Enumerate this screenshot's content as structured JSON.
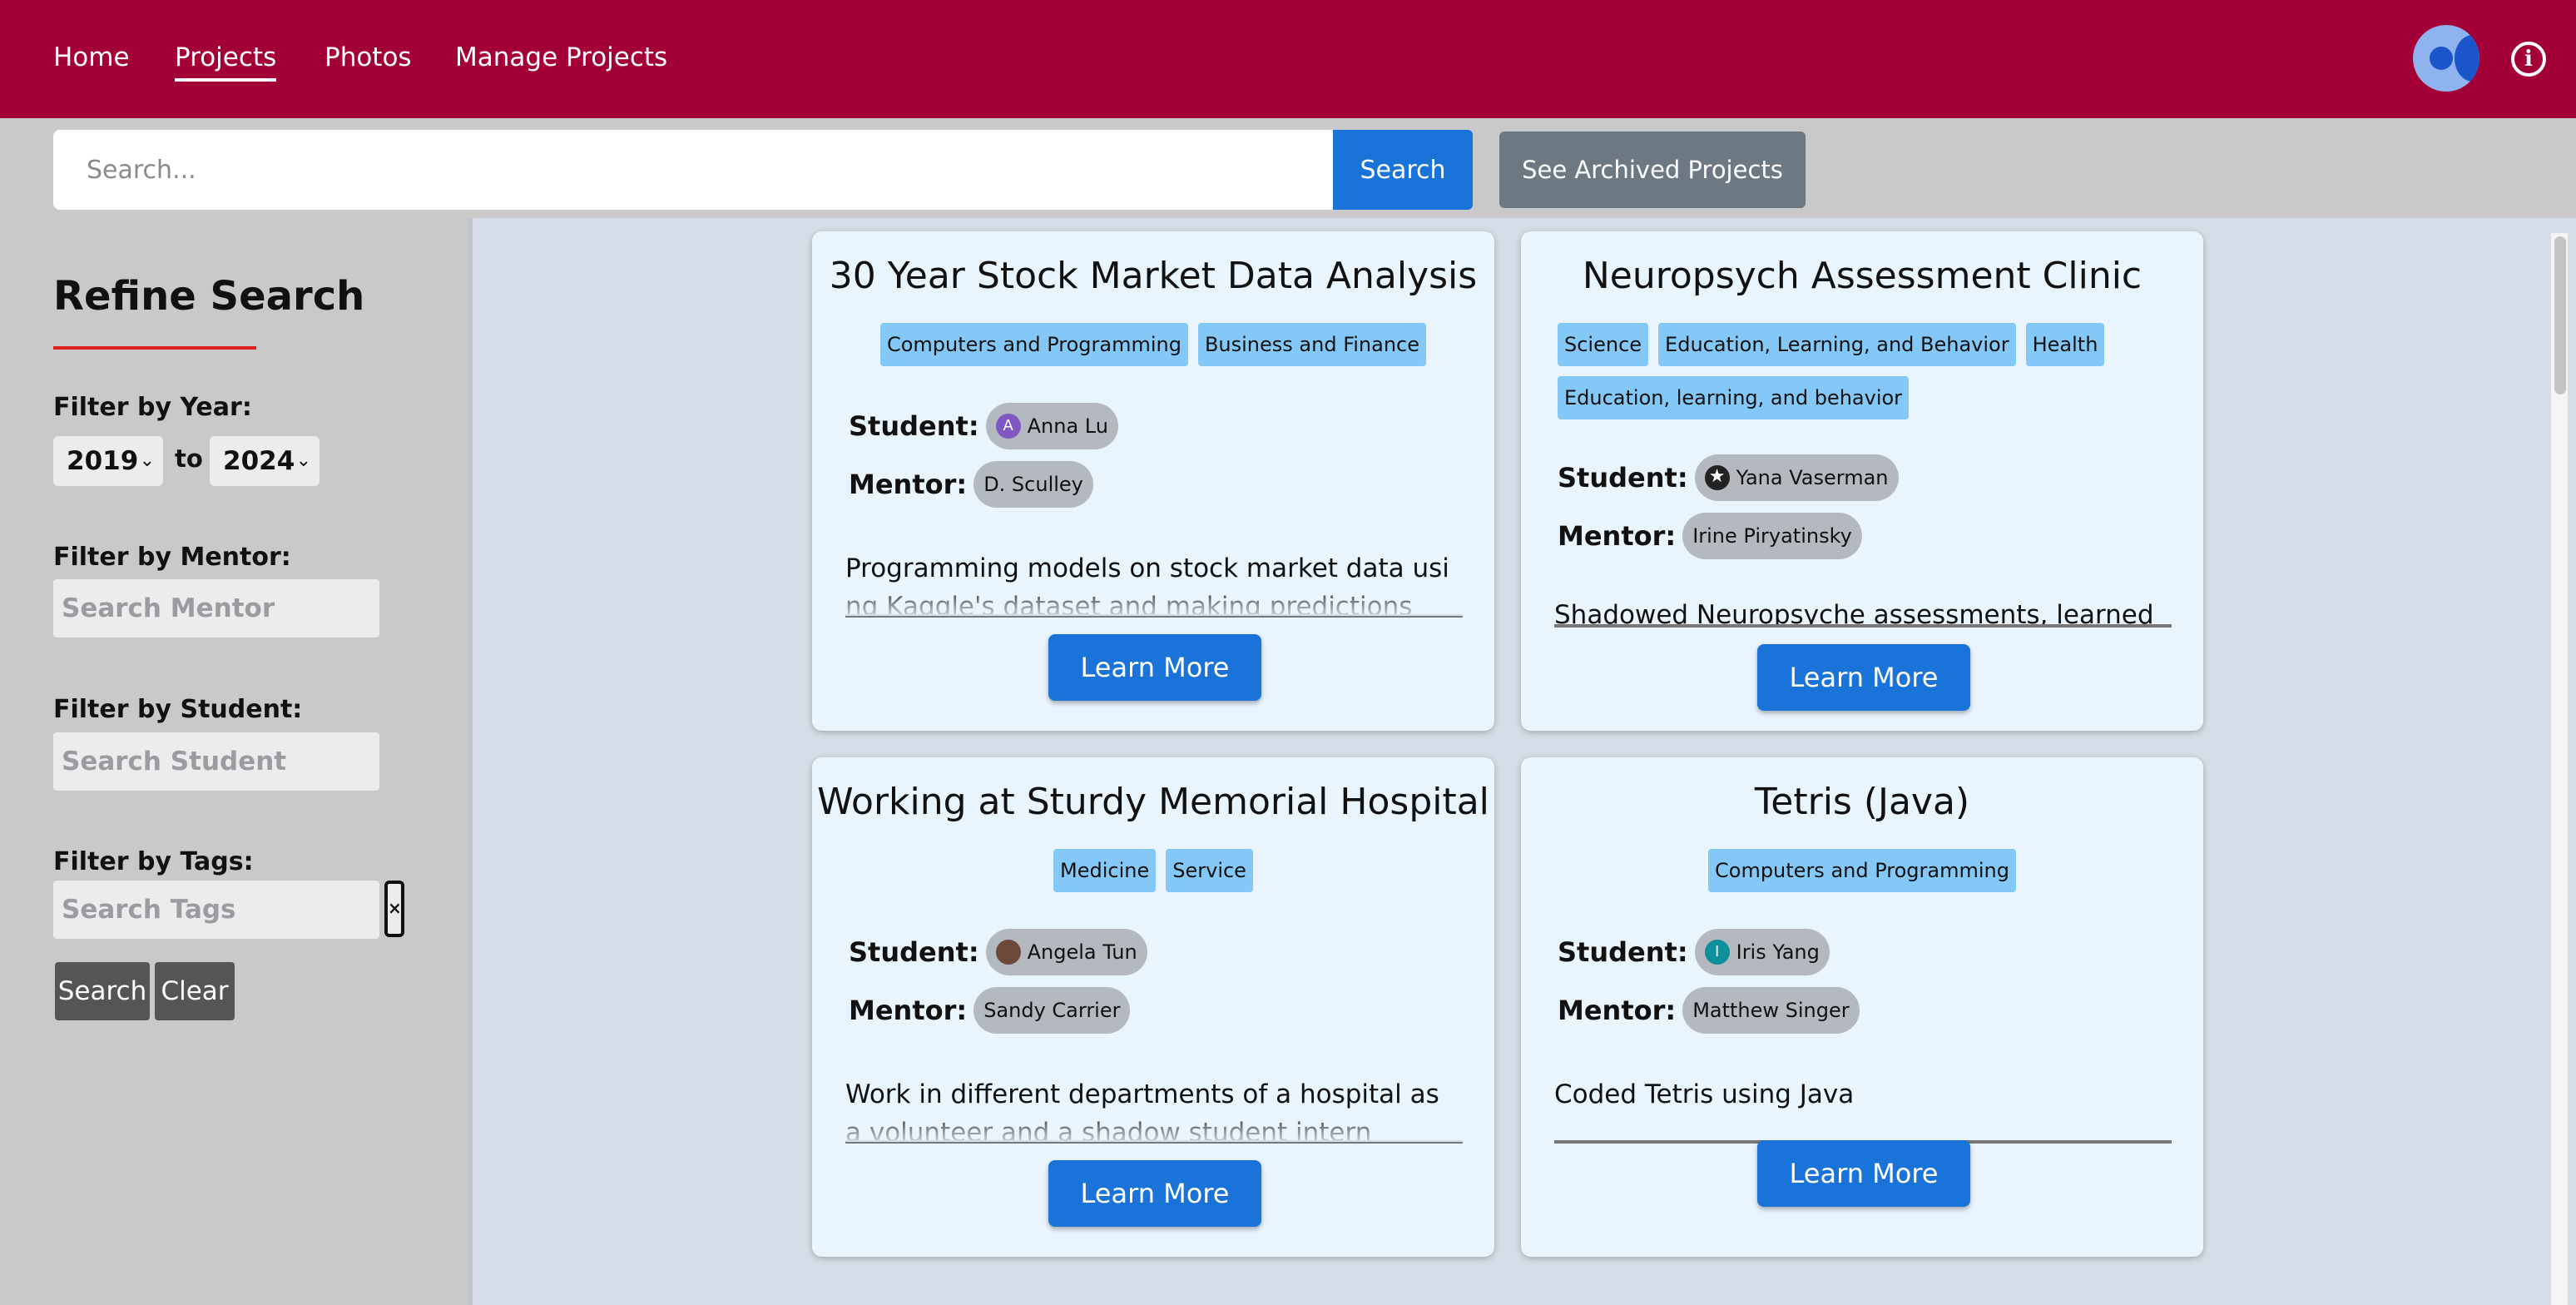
{
  "nav": {
    "links": [
      "Home",
      "Projects",
      "Photos",
      "Manage Projects"
    ],
    "active": "Projects"
  },
  "icons": {
    "avatar": "user-avatar-icon",
    "info": "info-icon"
  },
  "colors": {
    "nav_bg": "#a30037",
    "primary": "#1a73d8",
    "tag": "#84c8f7",
    "accent_underline": "#e0201e"
  },
  "search": {
    "placeholder": "Search...",
    "button": "Search",
    "archived_button": "See Archived Projects"
  },
  "sidebar": {
    "title": "Refine Search",
    "year_label": "Filter by Year:",
    "year_from": "2019",
    "year_to": "2024",
    "to_text": "to",
    "mentor_label": "Filter by Mentor:",
    "mentor_placeholder": "Search Mentor",
    "student_label": "Filter by Student:",
    "student_placeholder": "Search Student",
    "tags_label": "Filter by Tags:",
    "tags_placeholder": "Search Tags",
    "tags_clear_glyph": "×",
    "search_button": "Search",
    "clear_button": "Clear"
  },
  "labels": {
    "student": "Student:",
    "mentor": "Mentor:",
    "learn_more": "Learn More"
  },
  "projects": [
    {
      "title": "30 Year Stock Market Data Analysis",
      "tags": [
        "Computers and Programming",
        "Business and Finance"
      ],
      "student": "Anna Lu",
      "student_initial": "A",
      "mentor": "D. Sculley",
      "description": "Programming models on stock market data using Kaggle's dataset and making predictions"
    },
    {
      "title": "Neuropsych Assessment Clinic",
      "tags": [
        "Science",
        "Education, Learning, and Behavior",
        "Health",
        "Education, learning, and behavior"
      ],
      "student": "Yana Vaserman",
      "student_initial": "",
      "mentor": "Irine Piryatinsky",
      "description": "Shadowed Neuropsyche assessments, learned abou"
    },
    {
      "title": "Working at Sturdy Memorial Hospital",
      "tags": [
        "Medicine",
        "Service"
      ],
      "student": "Angela Tun",
      "student_initial": "",
      "mentor": "Sandy Carrier",
      "description": "Work in different departments of a hospital as a volunteer and a shadow student intern"
    },
    {
      "title": "Tetris (Java)",
      "tags": [
        "Computers and Programming"
      ],
      "student": "Iris Yang",
      "student_initial": "I",
      "mentor": "Matthew Singer",
      "description": "Coded Tetris using Java"
    }
  ]
}
